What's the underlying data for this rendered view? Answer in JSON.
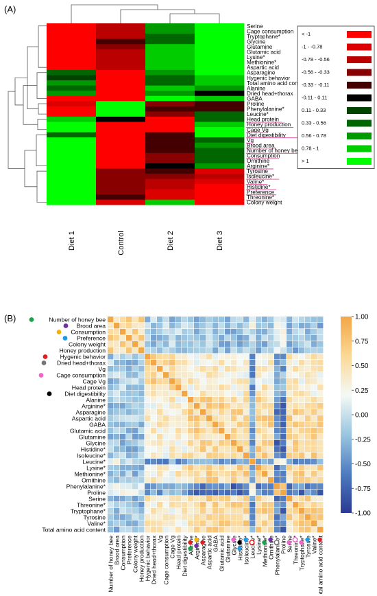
{
  "panels": {
    "a_label": "(A)",
    "b_label": "(B)"
  },
  "chart_data": [
    {
      "type": "heatmap",
      "panel": "(A)",
      "columns": [
        "Diet 1",
        "Control",
        "Diet 2",
        "Diet 3"
      ],
      "rows": [
        "Serine",
        "Cage consumption",
        "Tryptophane*",
        "Glycine",
        "Glutamine",
        "Glutamic acid",
        "Lysine*",
        "Methionine*",
        "Aspartic acid",
        "Asparagine",
        "Hygenic behavior",
        "Total amino acid content",
        "Alanine",
        "Dried head+thorax",
        "GABA",
        "Proline",
        "Phenylalanine*",
        "Leucine*",
        "Head protein",
        "Honey production",
        "Cage Vg",
        "Diet digestibility",
        "Vg",
        "Brood area",
        "Number of honey bee",
        "Consumption",
        "Ornithine",
        "Arginine*",
        "Tyrosine",
        "Isoleucine*",
        "Valine*",
        "Histidine*",
        "Preference",
        "Threonine*",
        "Colony weight"
      ],
      "underlined_rows": [
        "Head protein",
        "Honey production",
        "Cage Vg",
        "Diet digestibility",
        "Vg",
        "Brood area",
        "Number of honey bee",
        "Consumption",
        "Arginine*",
        "Tyrosine",
        "Isoleucine*",
        "Valine*",
        "Histidine*",
        "Preference",
        "Threonine*"
      ],
      "underline_color": "#e0409a",
      "values": [
        [
          -1.5,
          -0.7,
          0.6,
          1.5
        ],
        [
          -1.5,
          -0.7,
          0.7,
          1.5
        ],
        [
          -1.5,
          -0.6,
          0.5,
          1.5
        ],
        [
          -1.5,
          -0.2,
          0.5,
          1.5
        ],
        [
          -1.5,
          -0.5,
          0.8,
          1.5
        ],
        [
          -1.5,
          -0.6,
          0.8,
          1.2
        ],
        [
          -1.5,
          -0.6,
          0.8,
          1.2
        ],
        [
          -1.5,
          -0.6,
          0.8,
          1.2
        ],
        [
          -1.5,
          -0.7,
          0.8,
          1.1
        ],
        [
          0.4,
          -1.5,
          0.6,
          1.2
        ],
        [
          0.2,
          -1.5,
          0.5,
          0.9
        ],
        [
          0.6,
          -1.5,
          0.4,
          0.9
        ],
        [
          0.4,
          -1.5,
          0.8,
          0.6
        ],
        [
          0.6,
          -1.5,
          0.7,
          0.0
        ],
        [
          -1.5,
          -1.5,
          1.5,
          0.8
        ],
        [
          -0.8,
          1.5,
          -0.5,
          -0.2
        ],
        [
          -1.5,
          1.5,
          -0.3,
          -0.2
        ],
        [
          -1.5,
          1.5,
          -0.4,
          0.5
        ],
        [
          0.9,
          0.0,
          -1.5,
          0.5
        ],
        [
          1.5,
          -1.5,
          -1.5,
          0.8
        ],
        [
          1.5,
          -1.5,
          -1.5,
          1.0
        ],
        [
          0.4,
          -1.5,
          -0.3,
          1.0
        ],
        [
          1.5,
          -1.5,
          -0.3,
          0.5
        ],
        [
          1.5,
          -1.5,
          -0.2,
          0.6
        ],
        [
          1.5,
          -1.5,
          -0.3,
          0.5
        ],
        [
          1.5,
          -1.5,
          -0.4,
          0.4
        ],
        [
          1.5,
          -1.5,
          -0.4,
          0.5
        ],
        [
          1.5,
          -1.5,
          0.0,
          0.6
        ],
        [
          1.5,
          -0.4,
          -0.3,
          -0.8
        ],
        [
          1.5,
          -0.4,
          -0.4,
          -0.6
        ],
        [
          1.5,
          -0.4,
          -0.6,
          -0.8
        ],
        [
          1.5,
          -0.4,
          -0.6,
          -1.2
        ],
        [
          1.5,
          -0.5,
          -0.9,
          -1.5
        ],
        [
          1.5,
          -0.2,
          -1.0,
          -1.5
        ],
        [
          1.2,
          -1.0,
          0.9,
          -1.5
        ]
      ],
      "legend": [
        {
          "label": "< -1",
          "color": "#ff0000"
        },
        {
          "label": "-1 - -0.78",
          "color": "#dd0000"
        },
        {
          "label": "-0.78 - -0.56",
          "color": "#bb0000"
        },
        {
          "label": "-0.56 - -0.33",
          "color": "#880000"
        },
        {
          "label": "-0.33 - -0.11",
          "color": "#440000"
        },
        {
          "label": "-0.11 - 0.11",
          "color": "#000000"
        },
        {
          "label": "0.11 - 0.33",
          "color": "#004400"
        },
        {
          "label": "0.33 - 0.56",
          "color": "#006600"
        },
        {
          "label": "0.56 - 0.78",
          "color": "#009900"
        },
        {
          "label": "0.78 - 1",
          "color": "#00cc00"
        },
        {
          "label": "> 1",
          "color": "#00ff00"
        }
      ]
    },
    {
      "type": "heatmap",
      "panel": "(B)",
      "variables": [
        "Number of honey bee",
        "Brood area",
        "Consumption",
        "Preference",
        "Colony weight",
        "Honey production",
        "Hygenic behavior",
        "Dried head+thorax",
        "Vg",
        "Cage consumption",
        "Cage Vg",
        "Head protein",
        "Diet digestibility",
        "Alanine",
        "Arginine*",
        "Asparagine",
        "Aspartic acid",
        "GABA",
        "Glutamic acid",
        "Glutamine",
        "Glycine",
        "Histidine*",
        "Isoleucine*",
        "Leucine*",
        "Lysine*",
        "Methionine*",
        "Ornithine",
        "Phenylalanine*",
        "Proline",
        "Serine",
        "Threonine*",
        "Tryptophane*",
        "Tyrosine",
        "Valine*",
        "Total amino acid content"
      ],
      "variable_markers": [
        {
          "variable": "Number of honey bee",
          "color": "#1aa34a",
          "style": "filled"
        },
        {
          "variable": "Brood area",
          "color": "#7030a0",
          "style": "filled"
        },
        {
          "variable": "Consumption",
          "color": "#f5b400",
          "style": "filled"
        },
        {
          "variable": "Preference",
          "color": "#1e9be6",
          "style": "filled"
        },
        {
          "variable": "Hygenic behavior",
          "color": "#e02020",
          "style": "filled"
        },
        {
          "variable": "Dried head+thorax",
          "color": "#777777",
          "style": "filled"
        },
        {
          "variable": "Cage consumption",
          "color": "#ee66cc",
          "style": "filled"
        },
        {
          "variable": "Diet digestibility",
          "color": "#000000",
          "style": "filled"
        }
      ],
      "column_markers": [
        {
          "variable": "Alanine",
          "color": "#e02020",
          "style": "filled"
        },
        {
          "variable": "Alanine",
          "color": "#1aa34a",
          "style": "filled"
        },
        {
          "variable": "Arginine*",
          "color": "#f5b400",
          "style": "filled"
        },
        {
          "variable": "Arginine*",
          "color": "#7030a0",
          "style": "filled"
        },
        {
          "variable": "Asparagine",
          "color": "#e02020",
          "style": "filled"
        },
        {
          "variable": "Glycine",
          "color": "#ee66cc",
          "style": "filled"
        },
        {
          "variable": "Histidine*",
          "color": "#000000",
          "style": "filled"
        },
        {
          "variable": "Histidine*",
          "color": "#1e9be6",
          "style": "filled"
        },
        {
          "variable": "Isoleucine*",
          "color": "#1e9be6",
          "style": "filled"
        },
        {
          "variable": "Leucine*",
          "color": "#e02020",
          "style": "open"
        },
        {
          "variable": "Methionine*",
          "color": "#1aa34a",
          "style": "filled"
        },
        {
          "variable": "Ornithine",
          "color": "#7030a0",
          "style": "filled"
        },
        {
          "variable": "Phenylalanine*",
          "color": "#777777",
          "style": "open"
        },
        {
          "variable": "Serine",
          "color": "#ee66cc",
          "style": "filled"
        },
        {
          "variable": "Threonine*",
          "color": "#ee66cc",
          "style": "open"
        },
        {
          "variable": "Tryptophane*",
          "color": "#ee66cc",
          "style": "filled"
        },
        {
          "variable": "Tyrosine",
          "color": "#1e9be6",
          "style": "filled"
        },
        {
          "variable": "Total amino acid content",
          "color": "#e02020",
          "style": "filled"
        }
      ],
      "colorbar": {
        "min": -1.0,
        "max": 1.0,
        "ticks": [
          "-1.00",
          "-0.75",
          "-0.50",
          "-0.25",
          "0.00",
          "0.25",
          "0.50",
          "0.75",
          "1.00"
        ],
        "colors": [
          "#2a3a92",
          "#4f7cc0",
          "#9ac6e0",
          "#f4f9f6",
          "#fbd896",
          "#f3a646"
        ]
      },
      "groups": {
        "A": [
          "Number of honey bee",
          "Brood area",
          "Consumption",
          "Preference",
          "Colony weight",
          "Honey production"
        ],
        "B": [
          "Hygenic behavior",
          "Dried head+thorax",
          "Vg",
          "Cage consumption",
          "Cage Vg",
          "Head protein",
          "Diet digestibility"
        ],
        "C": [
          "Alanine",
          "Arginine*",
          "Asparagine",
          "Aspartic acid",
          "GABA",
          "Glutamic acid",
          "Glutamine",
          "Glycine",
          "Histidine*",
          "Isoleucine*",
          "Lysine*",
          "Methionine*",
          "Ornithine",
          "Serine",
          "Threonine*",
          "Tryptophane*",
          "Tyrosine",
          "Valine*",
          "Total amino acid content"
        ],
        "D": [
          "Leucine*"
        ],
        "E": [
          "Phenylalanine*",
          "Proline"
        ]
      },
      "group_correlations": {
        "A-A": 0.6,
        "A-B": -0.15,
        "A-C": -0.2,
        "A-D": 0.1,
        "A-E": 0.1,
        "B-B": 0.55,
        "B-C": 0.35,
        "B-D": -0.4,
        "B-E": -0.35,
        "C-C": 0.55,
        "C-D": -0.45,
        "C-E": -0.6,
        "D-D": 1.0,
        "D-E": 0.3,
        "E-E": 0.85
      }
    }
  ]
}
